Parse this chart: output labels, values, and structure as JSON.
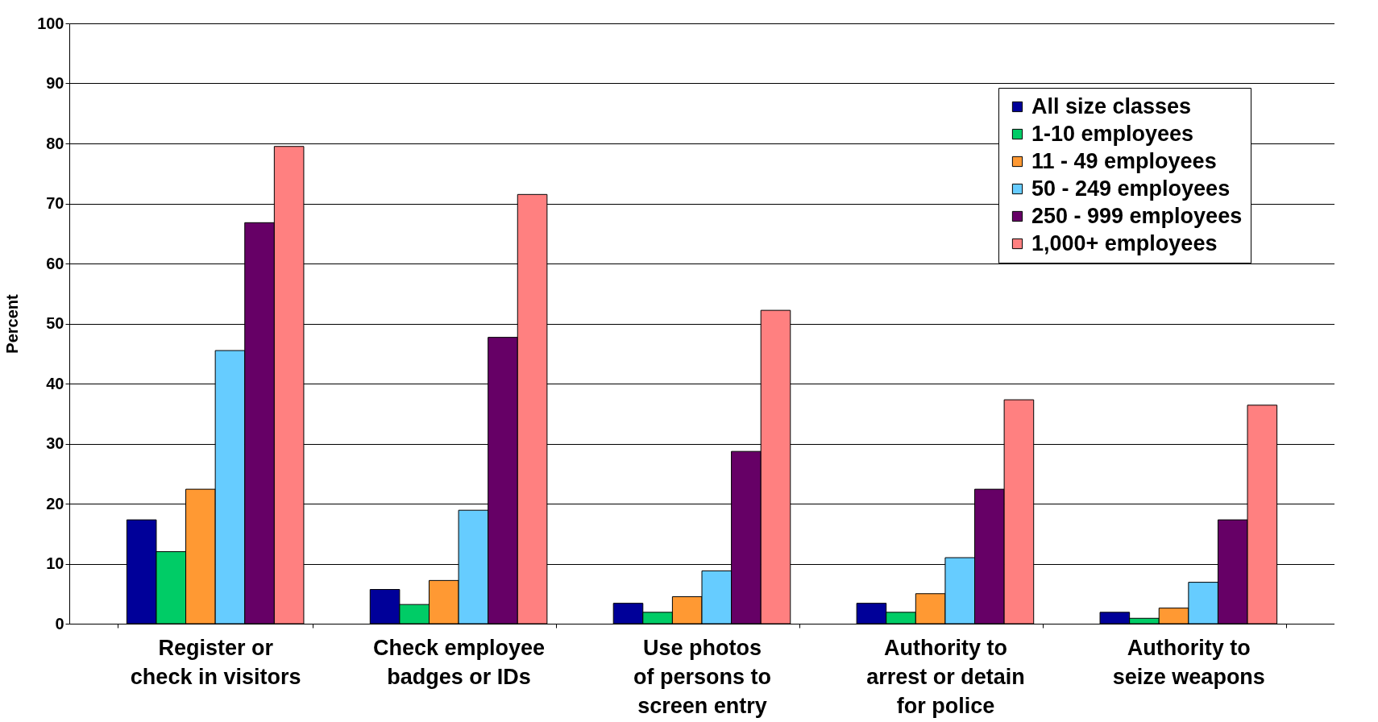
{
  "chart_data": {
    "type": "bar",
    "ylabel": "Percent",
    "categories": [
      "Register or\ncheck in visitors",
      "Check employee\nbadges or IDs",
      "Use photos\nof persons to\nscreen entry",
      "Authority to\narrest or detain\nfor police",
      "Authority to\nseize weapons"
    ],
    "series": [
      {
        "name": "All size classes",
        "color": "#000099",
        "values": [
          17.3,
          5.7,
          3.4,
          3.4,
          1.9
        ]
      },
      {
        "name": " 1-10 employees",
        "color": "#00cc66",
        "values": [
          12.0,
          3.2,
          1.9,
          1.9,
          0.9
        ]
      },
      {
        "name": "11 - 49 employees",
        "color": "#ff9933",
        "values": [
          22.4,
          7.2,
          4.5,
          5.0,
          2.6
        ]
      },
      {
        "name": "50 - 249 employees",
        "color": "#66ccff",
        "values": [
          45.5,
          18.9,
          8.8,
          11.0,
          6.9
        ]
      },
      {
        "name": "250 - 999 employees",
        "color": "#660066",
        "values": [
          66.8,
          47.7,
          28.7,
          22.4,
          17.3
        ]
      },
      {
        "name": "1,000+ employees",
        "color": "#ff8080",
        "values": [
          79.5,
          71.5,
          52.2,
          37.3,
          36.4
        ]
      }
    ],
    "ylim": [
      0,
      100
    ],
    "yticks": [
      0,
      10,
      20,
      30,
      40,
      50,
      60,
      70,
      80,
      90,
      100
    ],
    "grid": "y",
    "legend": "top right"
  }
}
